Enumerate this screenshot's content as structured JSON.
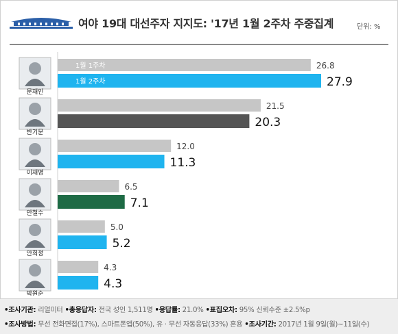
{
  "header": {
    "title": "여야 19대 대선주자 지지도: '17년 1월 2주차 주중집계",
    "unit": "단위: %"
  },
  "chart_data": {
    "type": "bar",
    "categories": [
      "문재인",
      "반기문",
      "이재명",
      "안철수",
      "안희정",
      "박원순"
    ],
    "series": [
      {
        "name": "1월 1주차",
        "values": [
          26.8,
          21.5,
          12.0,
          6.5,
          5.0,
          4.3
        ]
      },
      {
        "name": "1월 2주차",
        "values": [
          27.9,
          20.3,
          11.3,
          7.1,
          5.2,
          4.3
        ]
      }
    ],
    "value_labels_prev": [
      "26.8",
      "21.5",
      "12.0",
      "6.5",
      "5.0",
      "4.3"
    ],
    "value_labels_curr": [
      "27.9",
      "20.3",
      "11.3",
      "7.1",
      "5.2",
      "4.3"
    ],
    "colors": {
      "prev": "#c6c6c6",
      "curr": [
        "#1fb4ef",
        "#555555",
        "#1fb4ef",
        "#1e6b45",
        "#1fb4ef",
        "#1fb4ef"
      ]
    },
    "orientation": "horizontal",
    "xlim": [
      0,
      30
    ],
    "grid": false
  },
  "footer": {
    "row1": [
      {
        "key": "•조사기관:",
        "val": " 리얼미터 "
      },
      {
        "key": "•총응답자:",
        "val": " 전국 성인 1,511명 "
      },
      {
        "key": "•응답률:",
        "val": " 21.0% "
      },
      {
        "key": "•표집오차:",
        "val": " 95% 신뢰수준 ±2.5%p"
      }
    ],
    "row2": [
      {
        "key": "•조사방법:",
        "val": " 무선 전화면접(17%), 스마트폰앱(50%), 유 · 무선 자동응답(33%) 혼용 "
      },
      {
        "key": "•조사기간:",
        "val": " 2017년 1월 9일(월)~11일(수)"
      }
    ]
  }
}
